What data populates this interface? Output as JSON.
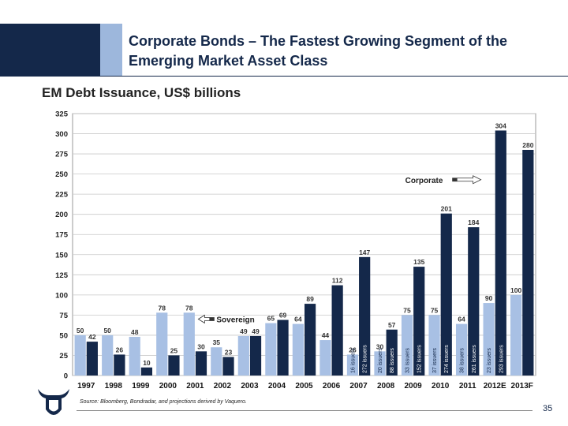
{
  "slide": {
    "title": "Corporate Bonds – The Fastest Growing Segment of the Emerging Market Asset Class",
    "source": "Source: Bloomberg, Bondradar, and projections derived by Vaquero.",
    "page_number": "35"
  },
  "colors": {
    "header_navy": "#14284a",
    "header_stripe": "#9db7dc",
    "sovereign": "#a8c0e4",
    "corporate": "#14284a"
  },
  "chart_data": {
    "type": "bar",
    "title": "EM Debt Issuance, US$ billions",
    "xlabel": "",
    "ylabel": "",
    "ylim": [
      0,
      325
    ],
    "yticks": [
      0,
      25,
      50,
      75,
      100,
      125,
      150,
      175,
      200,
      225,
      250,
      275,
      300,
      325
    ],
    "grid": true,
    "categories": [
      "1997",
      "1998",
      "1999",
      "2000",
      "2001",
      "2002",
      "2003",
      "2004",
      "2005",
      "2006",
      "2007",
      "2008",
      "2009",
      "2010",
      "2011",
      "2012E",
      "2013F"
    ],
    "series": [
      {
        "name": "Sovereign",
        "values": [
          50,
          50,
          48,
          78,
          78,
          35,
          49,
          65,
          64,
          44,
          26,
          30,
          75,
          75,
          64,
          90,
          100
        ]
      },
      {
        "name": "Corporate",
        "values": [
          42,
          26,
          10,
          25,
          30,
          23,
          49,
          69,
          89,
          112,
          147,
          57,
          135,
          201,
          184,
          304,
          280
        ]
      }
    ],
    "annotations": {
      "issuers": [
        {
          "category": "2007",
          "sovereign": "16 issuers",
          "corporate": "272 issuers"
        },
        {
          "category": "2008",
          "sovereign": "20 issuers",
          "corporate": "88 issuers"
        },
        {
          "category": "2009",
          "sovereign": "33 issuers",
          "corporate": "152 issuers"
        },
        {
          "category": "2010",
          "sovereign": "37 issuers",
          "corporate": "274 issuers"
        },
        {
          "category": "2011",
          "sovereign": "38 issuers",
          "corporate": "261 issuers"
        },
        {
          "category": "2012E",
          "sovereign": "23 issuers",
          "corporate": "293 issuers"
        }
      ],
      "callouts": [
        {
          "label": "Sovereign",
          "category": "2001",
          "value": 70
        },
        {
          "label": "Corporate",
          "category": "2009",
          "value": 243
        }
      ]
    }
  }
}
